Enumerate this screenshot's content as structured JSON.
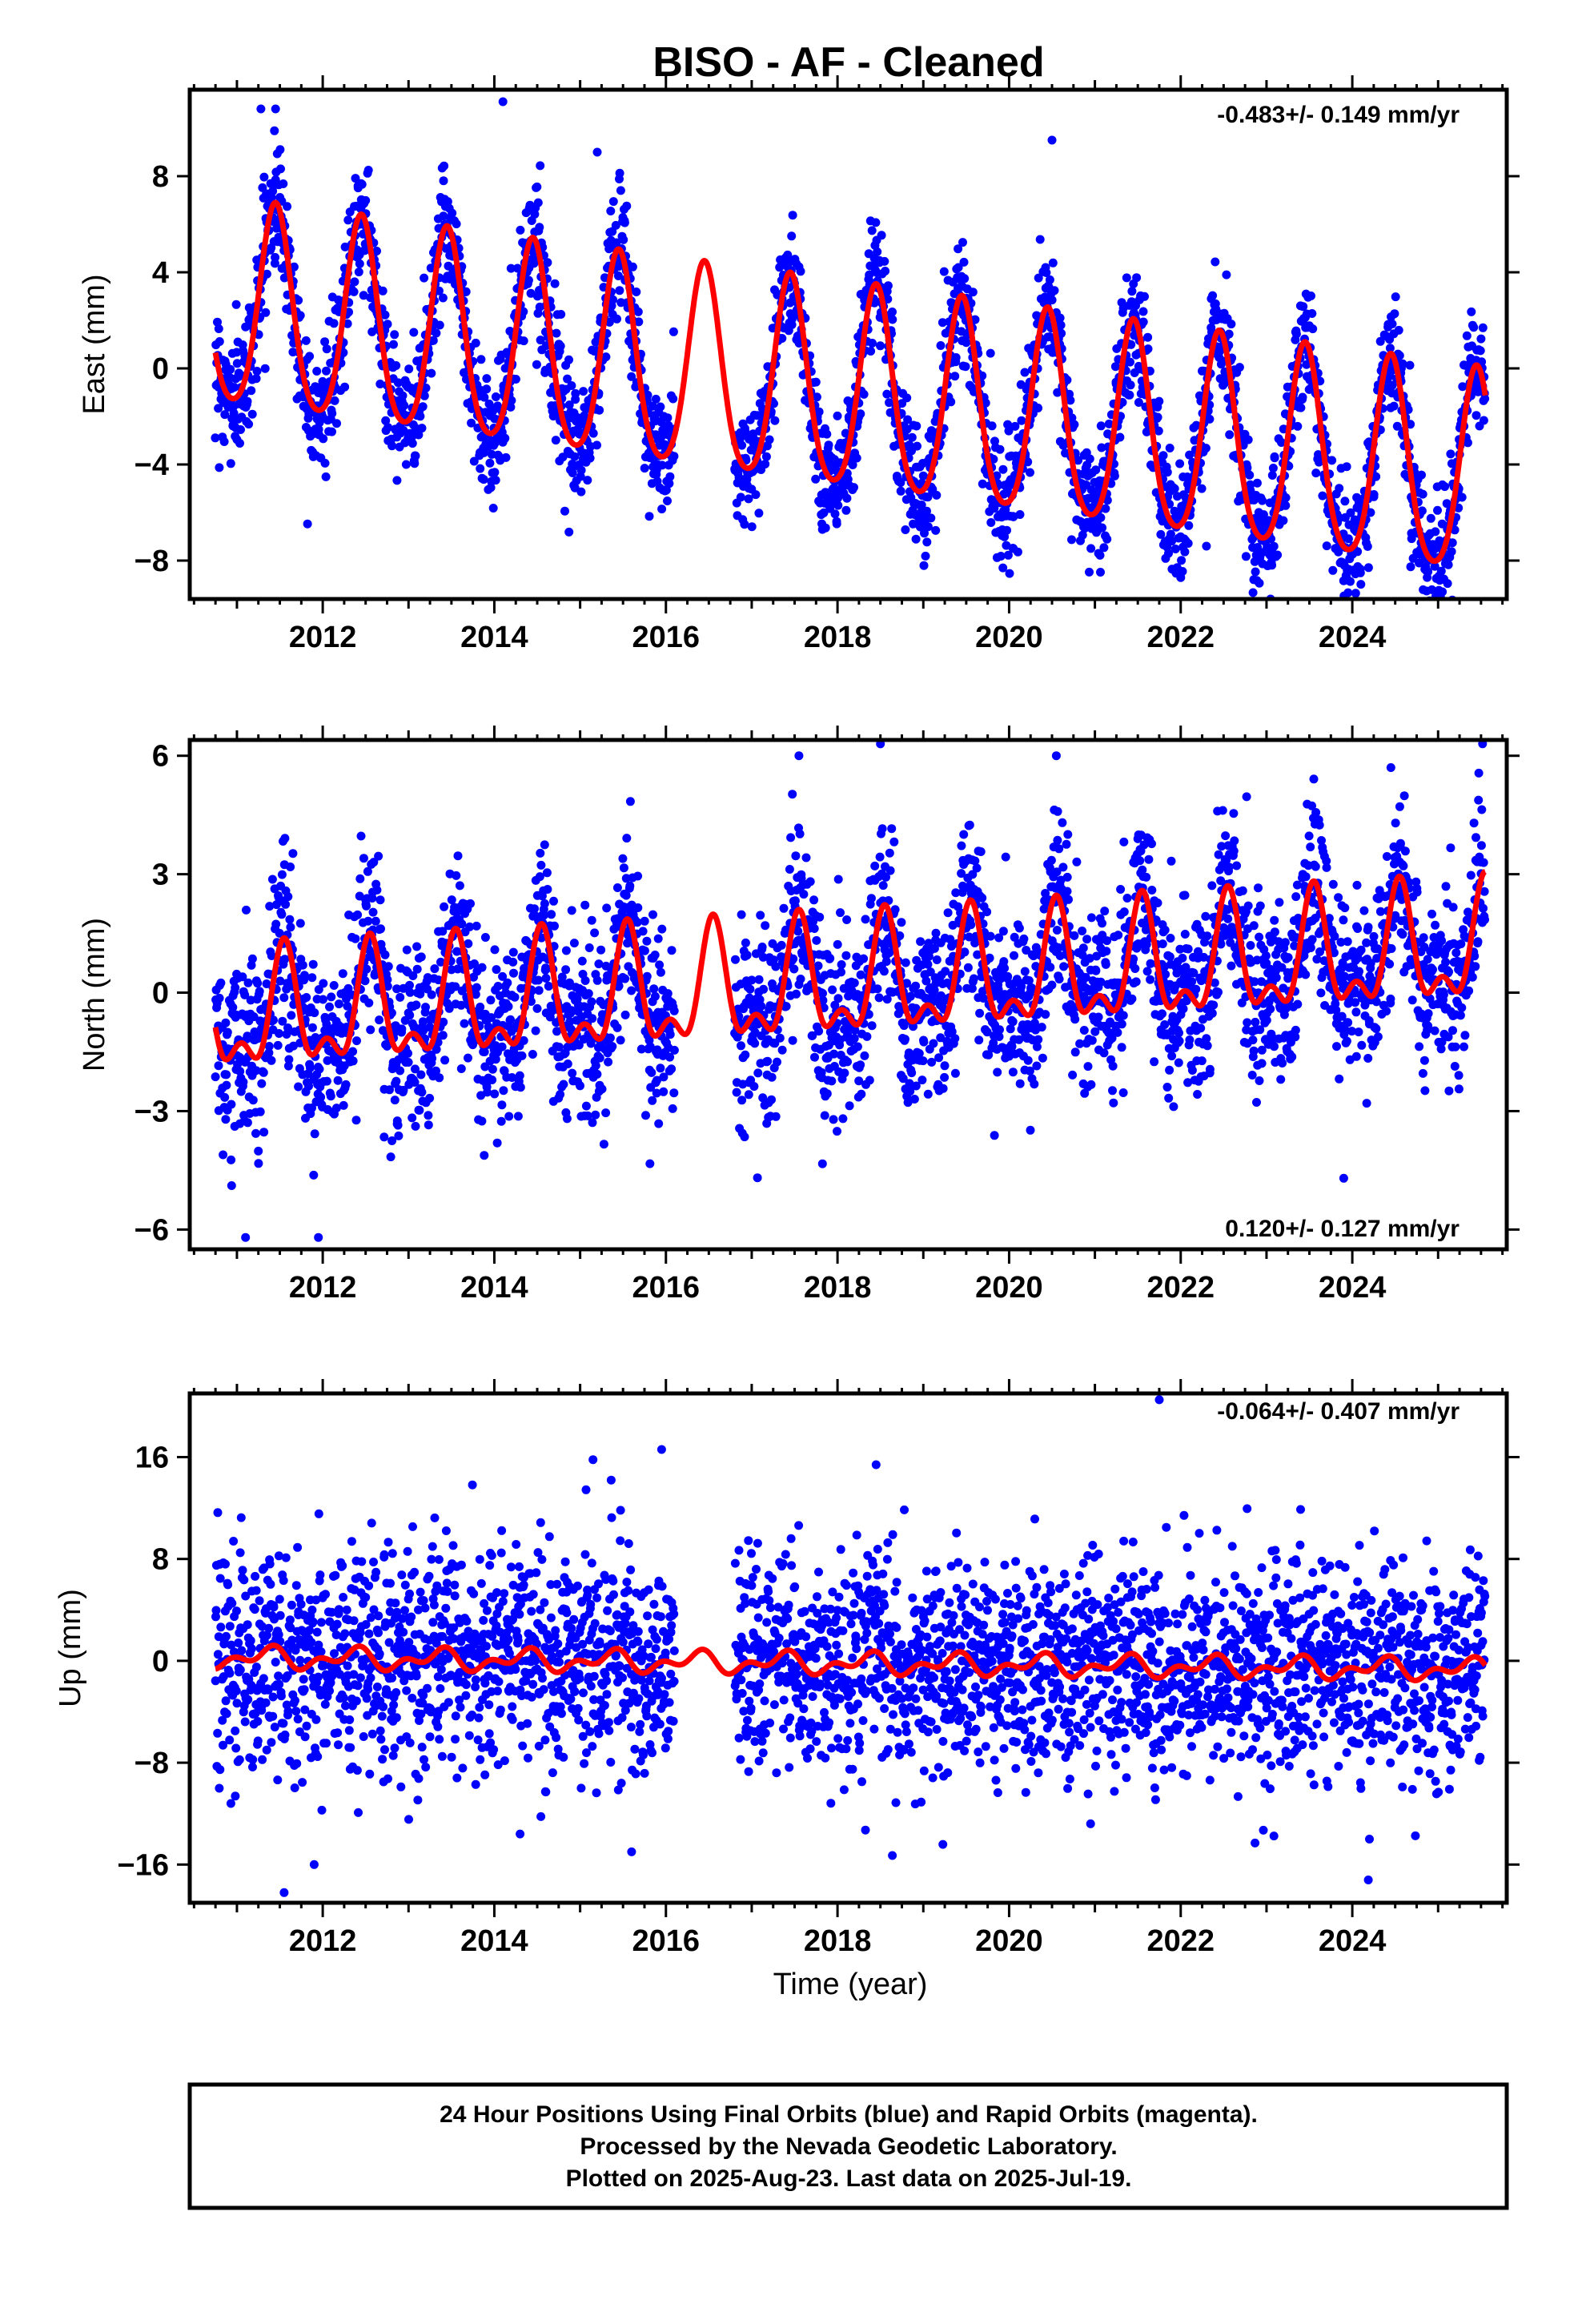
{
  "title": "BISO  - AF - Cleaned",
  "xlabel": "Time (year)",
  "footer": {
    "line1": "24 Hour Positions Using Final Orbits (blue) and Rapid Orbits (magenta).",
    "line2": "Processed by the Nevada Geodetic Laboratory.",
    "line3": "Plotted on 2025-Aug-23. Last data on 2025-Jul-19."
  },
  "colors": {
    "data_points": "#0000ff",
    "model_curve": "#ff0000",
    "frame": "#000000"
  },
  "chart_data": [
    {
      "type": "scatter",
      "panel": "east",
      "ylabel": "East (mm)",
      "rate_text": "-0.483+/- 0.149 mm/yr",
      "rate_placement": "top-right",
      "xlim": [
        2010.45,
        2025.8
      ],
      "ylim": [
        -9.6,
        11.6
      ],
      "xticks": [
        "2012",
        "2014",
        "2016",
        "2018",
        "2020",
        "2022",
        "2024"
      ],
      "yticks": [
        "8",
        "4",
        "0",
        "-4",
        "-8"
      ],
      "grid": false,
      "data_gap": [
        2016.1,
        2016.8
      ],
      "data_span": [
        2010.75,
        2025.55
      ],
      "model": {
        "name": "model fit",
        "offset_2010": 2.8,
        "rate": -0.483,
        "annual_amp": 4.2,
        "annual_peak": 2011.45,
        "semiannual_amp": 0.6,
        "semiannual_peak": 2011.45
      },
      "points": {
        "count": 3300,
        "spread_mm": 1.3,
        "outliers": [
          {
            "x": 2011.28,
            "y": 10.8
          },
          {
            "x": 2011.45,
            "y": 10.8
          },
          {
            "x": 2014.1,
            "y": 11.1
          },
          {
            "x": 2015.2,
            "y": 9.0
          },
          {
            "x": 2020.5,
            "y": 9.5
          },
          {
            "x": 2020.05,
            "y": -7.5
          },
          {
            "x": 2025.05,
            "y": -9.3
          },
          {
            "x": 2022.3,
            "y": -7.4
          }
        ]
      }
    },
    {
      "type": "scatter",
      "panel": "north",
      "ylabel": "North (mm)",
      "rate_text": "0.120+/- 0.127 mm/yr",
      "rate_placement": "bottom-right",
      "xlim": [
        2010.45,
        2025.8
      ],
      "ylim": [
        -6.5,
        6.4
      ],
      "xticks": [
        "2012",
        "2014",
        "2016",
        "2018",
        "2020",
        "2022",
        "2024"
      ],
      "yticks": [
        "6",
        "3",
        "0",
        "-3",
        "-6"
      ],
      "grid": false,
      "data_gap": [
        2016.1,
        2016.8
      ],
      "data_span": [
        2010.75,
        2025.55
      ],
      "model": {
        "name": "model fit",
        "offset_2010": -0.8,
        "rate": 0.12,
        "annual_amp": 1.3,
        "annual_peak": 2011.55,
        "semiannual_amp": 0.7,
        "semiannual_peak": 2011.55
      },
      "points": {
        "count": 3300,
        "spread_mm": 1.15,
        "outliers": [
          {
            "x": 2011.1,
            "y": -6.2
          },
          {
            "x": 2011.95,
            "y": -6.2
          },
          {
            "x": 2017.55,
            "y": 6.0
          },
          {
            "x": 2018.5,
            "y": 6.3
          },
          {
            "x": 2020.55,
            "y": 6.0
          },
          {
            "x": 2024.45,
            "y": 5.7
          },
          {
            "x": 2023.9,
            "y": -4.7
          }
        ]
      }
    },
    {
      "type": "scatter",
      "panel": "up",
      "ylabel": "Up (mm)",
      "rate_text": "-0.064+/- 0.407 mm/yr",
      "rate_placement": "top-right",
      "xlim": [
        2010.45,
        2025.8
      ],
      "ylim": [
        -19,
        21
      ],
      "xticks": [
        "2012",
        "2014",
        "2016",
        "2018",
        "2020",
        "2022",
        "2024"
      ],
      "yticks": [
        "16",
        "8",
        "0",
        "-8",
        "-16"
      ],
      "grid": false,
      "data_gap": [
        2016.1,
        2016.8
      ],
      "data_span": [
        2010.75,
        2025.55
      ],
      "model": {
        "name": "model fit",
        "offset_2010": 0.3,
        "rate": -0.064,
        "annual_amp": 0.6,
        "annual_peak": 2016.35,
        "semiannual_amp": 0.5,
        "semiannual_peak": 2011.45
      },
      "points": {
        "count": 3300,
        "spread_mm": 4.3,
        "outliers": [
          {
            "x": 2021.75,
            "y": 20.5
          },
          {
            "x": 2015.95,
            "y": 16.6
          },
          {
            "x": 2015.15,
            "y": 15.8
          },
          {
            "x": 2018.45,
            "y": 15.4
          },
          {
            "x": 2011.55,
            "y": -18.2
          },
          {
            "x": 2011.9,
            "y": -16.0
          },
          {
            "x": 2015.6,
            "y": -15.0
          },
          {
            "x": 2024.2,
            "y": -14.0
          },
          {
            "x": 2014.3,
            "y": -13.6
          },
          {
            "x": 2020.95,
            "y": -12.8
          }
        ]
      }
    }
  ]
}
